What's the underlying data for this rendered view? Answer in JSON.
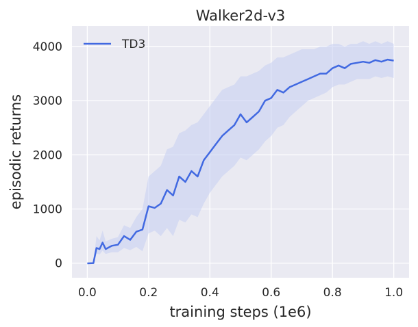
{
  "chart_data": {
    "type": "line",
    "title": "Walker2d-v3",
    "xlabel": "training steps (1e6)",
    "ylabel": "episodic returns",
    "xlim": [
      -0.05,
      1.05
    ],
    "ylim": [
      -270,
      4380
    ],
    "xticks": [
      0.0,
      0.2,
      0.4,
      0.6,
      0.8,
      1.0
    ],
    "xtick_labels": [
      "0.0",
      "0.2",
      "0.4",
      "0.6",
      "0.8",
      "1.0"
    ],
    "yticks": [
      0,
      1000,
      2000,
      3000,
      4000
    ],
    "ytick_labels": [
      "0",
      "1000",
      "2000",
      "3000",
      "4000"
    ],
    "grid": true,
    "legend_position": "top-left",
    "colors": {
      "background": "#EAEAF2",
      "grid": "#FFFFFF",
      "line": "#4169E1",
      "band": "#C5CDF2"
    },
    "series": [
      {
        "name": "TD3",
        "x": [
          0.0,
          0.02,
          0.03,
          0.04,
          0.05,
          0.06,
          0.08,
          0.1,
          0.12,
          0.14,
          0.16,
          0.18,
          0.2,
          0.22,
          0.24,
          0.26,
          0.28,
          0.3,
          0.32,
          0.34,
          0.36,
          0.38,
          0.4,
          0.42,
          0.44,
          0.46,
          0.48,
          0.5,
          0.52,
          0.54,
          0.56,
          0.58,
          0.6,
          0.62,
          0.64,
          0.66,
          0.68,
          0.7,
          0.72,
          0.74,
          0.76,
          0.78,
          0.8,
          0.82,
          0.84,
          0.86,
          0.88,
          0.9,
          0.92,
          0.94,
          0.96,
          0.98,
          1.0
        ],
        "values": [
          -5,
          0,
          280,
          260,
          380,
          260,
          320,
          340,
          500,
          430,
          580,
          620,
          1050,
          1020,
          1100,
          1350,
          1250,
          1600,
          1500,
          1700,
          1600,
          1900,
          2050,
          2200,
          2350,
          2450,
          2550,
          2750,
          2600,
          2700,
          2800,
          3000,
          3050,
          3200,
          3150,
          3250,
          3300,
          3350,
          3400,
          3450,
          3500,
          3500,
          3600,
          3650,
          3600,
          3680,
          3700,
          3720,
          3700,
          3750,
          3720,
          3760,
          3740
        ],
        "lower": [
          -5,
          0,
          180,
          160,
          230,
          170,
          200,
          200,
          280,
          240,
          300,
          220,
          550,
          600,
          500,
          650,
          500,
          800,
          750,
          900,
          850,
          1100,
          1300,
          1450,
          1600,
          1700,
          1800,
          1950,
          1900,
          2000,
          2100,
          2250,
          2350,
          2500,
          2550,
          2700,
          2800,
          2900,
          3000,
          3050,
          3100,
          3150,
          3250,
          3300,
          3300,
          3350,
          3400,
          3400,
          3400,
          3450,
          3420,
          3450,
          3420
        ],
        "upper": [
          -5,
          0,
          500,
          420,
          600,
          400,
          450,
          480,
          700,
          650,
          850,
          1000,
          1600,
          1700,
          1800,
          2100,
          2150,
          2400,
          2450,
          2550,
          2600,
          2750,
          2900,
          3050,
          3200,
          3250,
          3300,
          3450,
          3450,
          3500,
          3550,
          3650,
          3700,
          3800,
          3800,
          3850,
          3900,
          3950,
          3950,
          3950,
          4000,
          4000,
          4050,
          4050,
          4000,
          4050,
          4050,
          4100,
          4050,
          4100,
          4050,
          4100,
          4050
        ]
      }
    ]
  }
}
